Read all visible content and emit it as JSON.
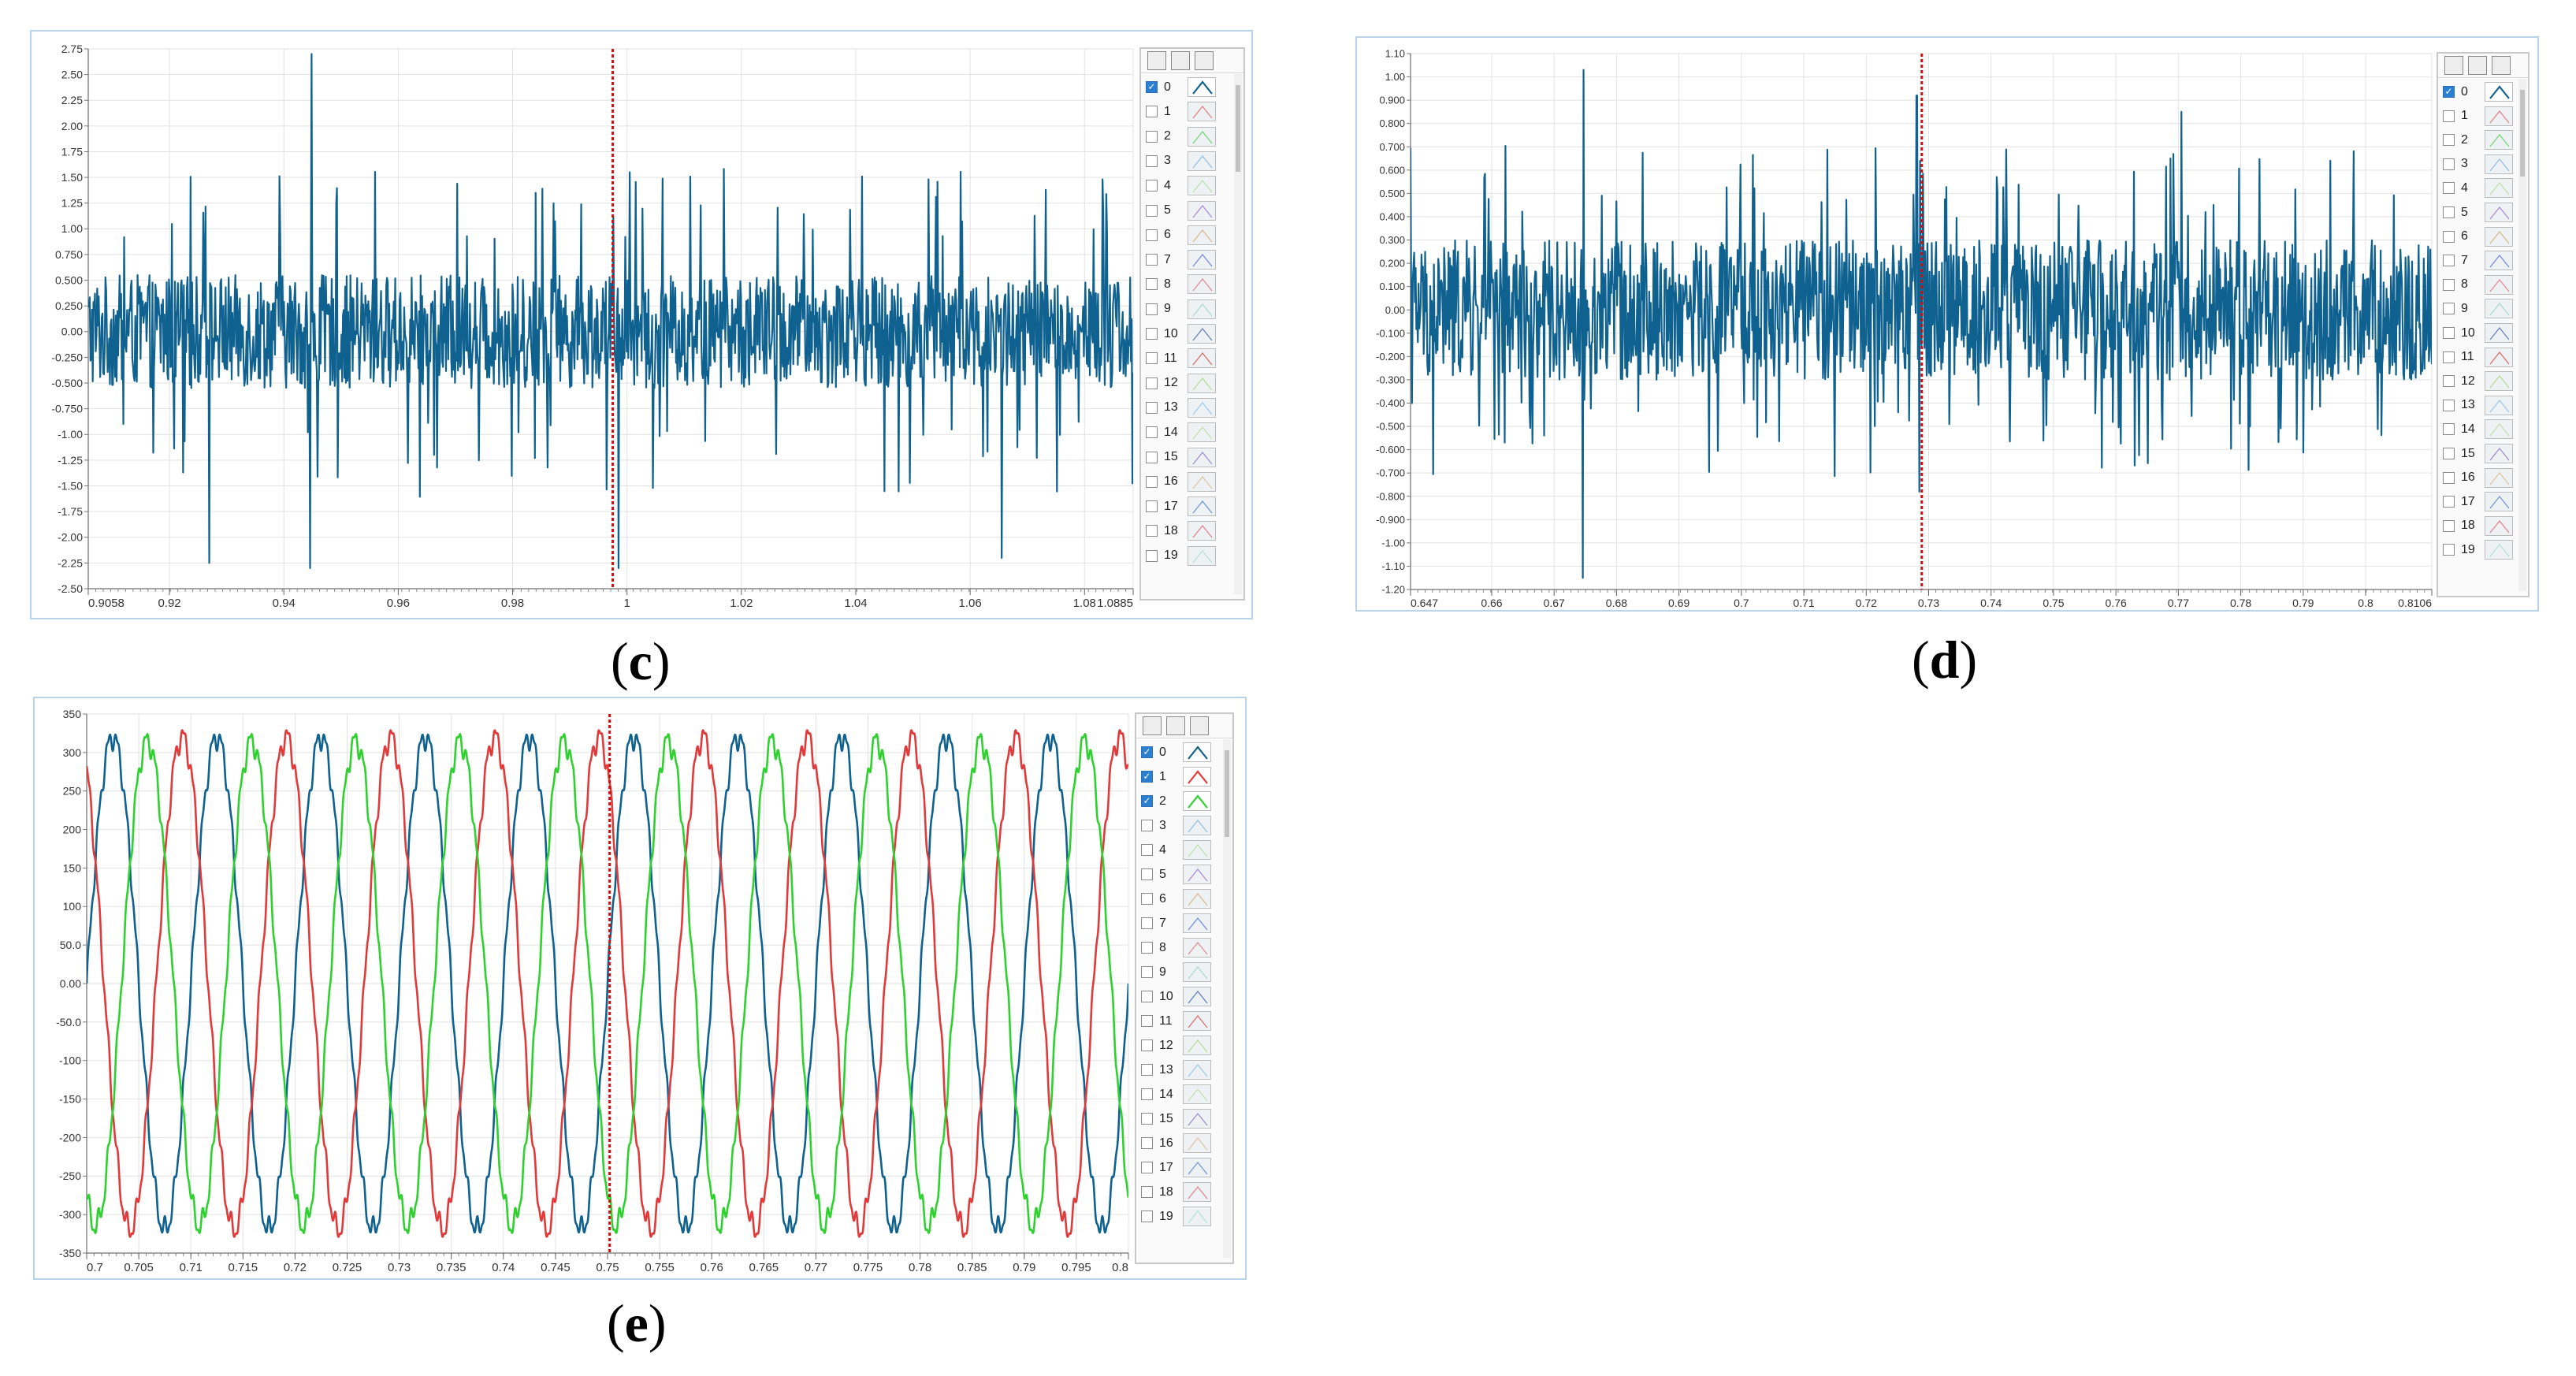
{
  "colors": {
    "series0": "#0f6190",
    "series1": "#e03a3a",
    "series2": "#2fd12f",
    "cursor": "#cc1111",
    "grid": "#e2e2e2",
    "frame": "#b9d3e8"
  },
  "legend_header_icons": [
    "pan-icon",
    "zoom-icon",
    "cursor-tool-icon"
  ],
  "legend_items": [
    {
      "label": "0",
      "swatch": "#0f6190"
    },
    {
      "label": "1",
      "swatch": "#e05050"
    },
    {
      "label": "2",
      "swatch": "#40c840"
    },
    {
      "label": "3",
      "swatch": "#6ca8e0"
    },
    {
      "label": "4",
      "swatch": "#a8d890"
    },
    {
      "label": "5",
      "swatch": "#9060c8"
    },
    {
      "label": "6",
      "swatch": "#d0a060"
    },
    {
      "label": "7",
      "swatch": "#4060d8"
    },
    {
      "label": "8",
      "swatch": "#e06070"
    },
    {
      "label": "9",
      "swatch": "#90d0c0"
    },
    {
      "label": "10",
      "swatch": "#3050a0"
    },
    {
      "label": "11",
      "swatch": "#d03030"
    },
    {
      "label": "12",
      "swatch": "#a0d070"
    },
    {
      "label": "13",
      "swatch": "#80b8e8"
    },
    {
      "label": "14",
      "swatch": "#b0d890"
    },
    {
      "label": "15",
      "swatch": "#8060c0"
    },
    {
      "label": "16",
      "swatch": "#d8b080"
    },
    {
      "label": "17",
      "swatch": "#3a70c8"
    },
    {
      "label": "18",
      "swatch": "#e05060"
    },
    {
      "label": "19",
      "swatch": "#a0d8d0"
    }
  ],
  "chart_data": [
    {
      "id": "c",
      "caption": "c",
      "type": "line",
      "xlim": [
        0.9058,
        1.0885
      ],
      "ylim": [
        -2.5,
        2.75
      ],
      "x_ticks": [
        "0.9058",
        "0.92",
        "0.94",
        "0.96",
        "0.98",
        "1",
        "1.02",
        "1.04",
        "1.06",
        "1.08",
        "1.0885"
      ],
      "x_tick_values": [
        0.9058,
        0.92,
        0.94,
        0.96,
        0.98,
        1.0,
        1.02,
        1.04,
        1.06,
        1.08,
        1.0885
      ],
      "y_ticks": [
        "2.75",
        "2.50",
        "2.25",
        "2.00",
        "1.75",
        "1.50",
        "1.25",
        "1.00",
        "0.750",
        "0.500",
        "0.250",
        "0.00",
        "-0.250",
        "-0.500",
        "-0.750",
        "-1.00",
        "-1.25",
        "-1.50",
        "-1.75",
        "-2.00",
        "-2.25",
        "-2.50"
      ],
      "y_tick_values": [
        2.75,
        2.5,
        2.25,
        2.0,
        1.75,
        1.5,
        1.25,
        1.0,
        0.75,
        0.5,
        0.25,
        0,
        -0.25,
        -0.5,
        -0.75,
        -1.0,
        -1.25,
        -1.5,
        -1.75,
        -2.0,
        -2.25,
        -2.5
      ],
      "cursor_x": 0.9975,
      "grid": true,
      "checked": [
        true,
        false,
        false,
        false,
        false,
        false,
        false,
        false,
        false,
        false,
        false,
        false,
        false,
        false,
        false,
        false,
        false,
        false,
        false,
        false
      ],
      "series": [
        {
          "style": "noise",
          "color_key": "series0",
          "amplitude": 0.55,
          "peaks": 1.25,
          "points": 1400,
          "extremes": [
            [
              0.9448,
              2.7
            ],
            [
              0.9446,
              -2.3
            ],
            [
              0.9985,
              -2.3
            ],
            [
              0.927,
              -2.25
            ],
            [
              1.0655,
              -2.2
            ]
          ]
        }
      ]
    },
    {
      "id": "d",
      "caption": "d",
      "type": "line",
      "xlim": [
        0.647,
        0.8106
      ],
      "ylim": [
        -1.2,
        1.1
      ],
      "x_ticks": [
        "0.647",
        "0.66",
        "0.67",
        "0.68",
        "0.69",
        "0.7",
        "0.71",
        "0.72",
        "0.73",
        "0.74",
        "0.75",
        "0.76",
        "0.77",
        "0.78",
        "0.79",
        "0.8",
        "0.8106"
      ],
      "x_tick_values": [
        0.647,
        0.66,
        0.67,
        0.68,
        0.69,
        0.7,
        0.71,
        0.72,
        0.73,
        0.74,
        0.75,
        0.76,
        0.77,
        0.78,
        0.79,
        0.8,
        0.8106
      ],
      "y_ticks": [
        "1.10",
        "1.00",
        "0.900",
        "0.800",
        "0.700",
        "0.600",
        "0.500",
        "0.400",
        "0.300",
        "0.200",
        "0.100",
        "0.00",
        "-0.100",
        "-0.200",
        "-0.300",
        "-0.400",
        "-0.500",
        "-0.600",
        "-0.700",
        "-0.800",
        "-0.900",
        "-1.00",
        "-1.10",
        "-1.20"
      ],
      "y_tick_values": [
        1.1,
        1.0,
        0.9,
        0.8,
        0.7,
        0.6,
        0.5,
        0.4,
        0.3,
        0.2,
        0.1,
        0,
        -0.1,
        -0.2,
        -0.3,
        -0.4,
        -0.5,
        -0.6,
        -0.7,
        -0.8,
        -0.9,
        -1.0,
        -1.1,
        -1.2
      ],
      "cursor_x": 0.7289,
      "grid": true,
      "checked": [
        true,
        false,
        false,
        false,
        false,
        false,
        false,
        false,
        false,
        false,
        false,
        false,
        false,
        false,
        false,
        false,
        false,
        false,
        false,
        false
      ],
      "series": [
        {
          "style": "noise",
          "color_key": "series0",
          "amplitude": 0.3,
          "peaks": 0.55,
          "points": 1400,
          "extremes": [
            [
              0.6747,
              1.03
            ],
            [
              0.6746,
              -1.15
            ],
            [
              0.7281,
              0.92
            ],
            [
              0.7705,
              0.85
            ],
            [
              0.7285,
              -0.78
            ]
          ]
        }
      ]
    },
    {
      "id": "e",
      "caption": "e",
      "type": "line",
      "xlim": [
        0.7,
        0.8
      ],
      "ylim": [
        -350,
        350
      ],
      "x_ticks": [
        "0.7",
        "0.705",
        "0.71",
        "0.715",
        "0.72",
        "0.725",
        "0.73",
        "0.735",
        "0.74",
        "0.745",
        "0.75",
        "0.755",
        "0.76",
        "0.765",
        "0.77",
        "0.775",
        "0.78",
        "0.785",
        "0.79",
        "0.795",
        "0.8"
      ],
      "x_tick_values": [
        0.7,
        0.705,
        0.71,
        0.715,
        0.72,
        0.725,
        0.73,
        0.735,
        0.74,
        0.745,
        0.75,
        0.755,
        0.76,
        0.765,
        0.77,
        0.775,
        0.78,
        0.785,
        0.79,
        0.795,
        0.8
      ],
      "y_ticks": [
        "350",
        "300",
        "250",
        "200",
        "150",
        "100",
        "50.0",
        "0.00",
        "-50.0",
        "-100",
        "-150",
        "-200",
        "-250",
        "-300",
        "-350"
      ],
      "y_tick_values": [
        350,
        300,
        250,
        200,
        150,
        100,
        50,
        0,
        -50,
        -100,
        -150,
        -200,
        -250,
        -300,
        -350
      ],
      "cursor_x": 0.7502,
      "grid": true,
      "checked": [
        true,
        true,
        true,
        false,
        false,
        false,
        false,
        false,
        false,
        false,
        false,
        false,
        false,
        false,
        false,
        false,
        false,
        false,
        false,
        false
      ],
      "series": [
        {
          "name": "0",
          "style": "sine",
          "color_key": "series0",
          "amplitude": 320,
          "frequency_hz": 100,
          "phase_deg": 0,
          "ripple": 12
        },
        {
          "name": "1",
          "style": "sine",
          "color_key": "series1",
          "amplitude": 320,
          "frequency_hz": 100,
          "phase_deg": 120,
          "ripple": 12
        },
        {
          "name": "2",
          "style": "sine",
          "color_key": "series2",
          "amplitude": 315,
          "frequency_hz": 100,
          "phase_deg": -120,
          "ripple": 12
        }
      ]
    }
  ]
}
